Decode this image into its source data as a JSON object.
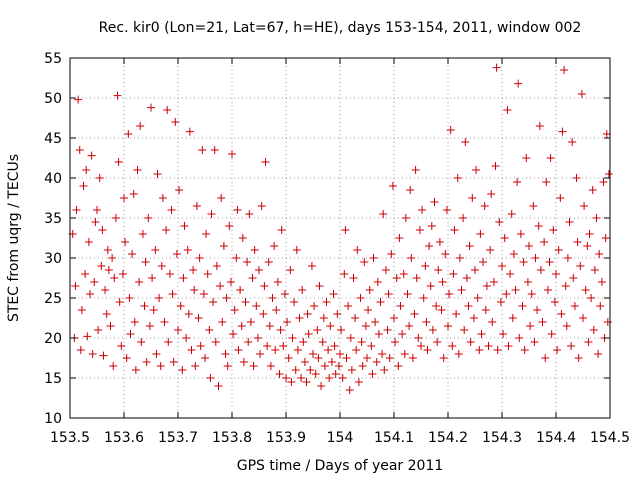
{
  "chart_data": {
    "type": "scatter",
    "title": "Rec. kir0 (Lon=21, Lat=67, h=HE), days 153-154, 2011, window 002",
    "xlabel": "GPS time / Days of year 2011",
    "ylabel": "STEC from uqrg / TECUs",
    "xlim": [
      153.5,
      154.5
    ],
    "ylim": [
      10,
      55
    ],
    "xticks": [
      153.5,
      153.6,
      153.7,
      153.8,
      153.9,
      154.0,
      154.1,
      154.2,
      154.3,
      154.4,
      154.5
    ],
    "xtick_labels": [
      "153.5",
      "153.6",
      "153.7",
      "153.8",
      "153.9",
      "154",
      "154.1",
      "154.2",
      "154.3",
      "154.4",
      "154.5"
    ],
    "yticks": [
      10,
      15,
      20,
      25,
      30,
      35,
      40,
      45,
      50,
      55
    ],
    "ytick_labels": [
      "10",
      "15",
      "20",
      "25",
      "30",
      "35",
      "40",
      "45",
      "50",
      "55"
    ],
    "grid": true,
    "marker": "plus",
    "color": "#cc0000",
    "points": [
      [
        153.505,
        33.0
      ],
      [
        153.508,
        20.0
      ],
      [
        153.51,
        26.5
      ],
      [
        153.512,
        36.0
      ],
      [
        153.515,
        49.8
      ],
      [
        153.518,
        43.5
      ],
      [
        153.52,
        18.5
      ],
      [
        153.522,
        23.5
      ],
      [
        153.525,
        39.0
      ],
      [
        153.528,
        28.0
      ],
      [
        153.53,
        41.0
      ],
      [
        153.532,
        20.2
      ],
      [
        153.535,
        32.0
      ],
      [
        153.537,
        25.5
      ],
      [
        153.54,
        42.8
      ],
      [
        153.542,
        18.0
      ],
      [
        153.545,
        27.0
      ],
      [
        153.547,
        34.5
      ],
      [
        153.55,
        36.0
      ],
      [
        153.552,
        21.0
      ],
      [
        153.555,
        40.0
      ],
      [
        153.558,
        29.0
      ],
      [
        153.56,
        33.5
      ],
      [
        153.562,
        17.8
      ],
      [
        153.565,
        26.0
      ],
      [
        153.568,
        23.0
      ],
      [
        153.57,
        31.0
      ],
      [
        153.572,
        28.5
      ],
      [
        153.575,
        21.5
      ],
      [
        153.578,
        30.0
      ],
      [
        153.58,
        16.5
      ],
      [
        153.582,
        27.5
      ],
      [
        153.585,
        35.0
      ],
      [
        153.588,
        50.3
      ],
      [
        153.59,
        42.0
      ],
      [
        153.592,
        24.5
      ],
      [
        153.595,
        19.0
      ],
      [
        153.598,
        28.0
      ],
      [
        153.6,
        37.5
      ],
      [
        153.602,
        32.0
      ],
      [
        153.605,
        17.5
      ],
      [
        153.608,
        45.5
      ],
      [
        153.61,
        25.0
      ],
      [
        153.612,
        20.5
      ],
      [
        153.615,
        30.5
      ],
      [
        153.618,
        38.0
      ],
      [
        153.62,
        22.0
      ],
      [
        153.622,
        16.0
      ],
      [
        153.625,
        41.0
      ],
      [
        153.628,
        27.0
      ],
      [
        153.63,
        46.5
      ],
      [
        153.632,
        19.5
      ],
      [
        153.635,
        33.0
      ],
      [
        153.638,
        24.0
      ],
      [
        153.64,
        29.5
      ],
      [
        153.642,
        17.0
      ],
      [
        153.645,
        35.0
      ],
      [
        153.648,
        21.5
      ],
      [
        153.65,
        48.8
      ],
      [
        153.652,
        27.5
      ],
      [
        153.655,
        23.5
      ],
      [
        153.658,
        31.0
      ],
      [
        153.66,
        18.0
      ],
      [
        153.662,
        40.5
      ],
      [
        153.665,
        25.0
      ],
      [
        153.668,
        16.5
      ],
      [
        153.67,
        29.0
      ],
      [
        153.672,
        37.5
      ],
      [
        153.675,
        22.0
      ],
      [
        153.678,
        33.5
      ],
      [
        153.68,
        48.5
      ],
      [
        153.682,
        19.5
      ],
      [
        153.685,
        28.0
      ],
      [
        153.688,
        36.0
      ],
      [
        153.69,
        25.5
      ],
      [
        153.692,
        17.0
      ],
      [
        153.695,
        47.0
      ],
      [
        153.698,
        30.5
      ],
      [
        153.7,
        21.0
      ],
      [
        153.702,
        38.5
      ],
      [
        153.705,
        24.0
      ],
      [
        153.708,
        16.0
      ],
      [
        153.71,
        27.5
      ],
      [
        153.712,
        34.0
      ],
      [
        153.715,
        20.0
      ],
      [
        153.718,
        31.0
      ],
      [
        153.72,
        23.0
      ],
      [
        153.722,
        45.8
      ],
      [
        153.725,
        18.5
      ],
      [
        153.728,
        28.5
      ],
      [
        153.73,
        26.0
      ],
      [
        153.732,
        16.5
      ],
      [
        153.735,
        36.5
      ],
      [
        153.738,
        22.5
      ],
      [
        153.74,
        30.0
      ],
      [
        153.742,
        19.0
      ],
      [
        153.745,
        43.5
      ],
      [
        153.748,
        25.5
      ],
      [
        153.75,
        17.5
      ],
      [
        153.752,
        33.0
      ],
      [
        153.755,
        28.0
      ],
      [
        153.758,
        21.0
      ],
      [
        153.76,
        15.0
      ],
      [
        153.762,
        35.5
      ],
      [
        153.765,
        24.5
      ],
      [
        153.768,
        43.5
      ],
      [
        153.77,
        19.5
      ],
      [
        153.772,
        29.0
      ],
      [
        153.775,
        14.0
      ],
      [
        153.778,
        26.5
      ],
      [
        153.78,
        37.5
      ],
      [
        153.782,
        22.0
      ],
      [
        153.785,
        31.5
      ],
      [
        153.788,
        18.0
      ],
      [
        153.79,
        25.0
      ],
      [
        153.792,
        16.5
      ],
      [
        153.795,
        34.0
      ],
      [
        153.798,
        27.0
      ],
      [
        153.8,
        43.0
      ],
      [
        153.802,
        20.5
      ],
      [
        153.805,
        23.5
      ],
      [
        153.808,
        30.0
      ],
      [
        153.81,
        36.0
      ],
      [
        153.812,
        18.5
      ],
      [
        153.815,
        26.0
      ],
      [
        153.818,
        21.5
      ],
      [
        153.82,
        32.5
      ],
      [
        153.822,
        17.0
      ],
      [
        153.825,
        24.5
      ],
      [
        153.828,
        29.5
      ],
      [
        153.83,
        19.5
      ],
      [
        153.832,
        35.5
      ],
      [
        153.835,
        22.0
      ],
      [
        153.838,
        27.5
      ],
      [
        153.84,
        16.5
      ],
      [
        153.842,
        31.0
      ],
      [
        153.845,
        24.0
      ],
      [
        153.848,
        20.0
      ],
      [
        153.85,
        28.5
      ],
      [
        153.852,
        18.0
      ],
      [
        153.855,
        36.5
      ],
      [
        153.858,
        23.0
      ],
      [
        153.86,
        26.5
      ],
      [
        153.862,
        42.0
      ],
      [
        153.865,
        19.0
      ],
      [
        153.868,
        29.5
      ],
      [
        153.87,
        21.5
      ],
      [
        153.872,
        16.5
      ],
      [
        153.875,
        25.0
      ],
      [
        153.878,
        31.5
      ],
      [
        153.88,
        18.5
      ],
      [
        153.882,
        23.5
      ],
      [
        153.885,
        27.0
      ],
      [
        153.888,
        15.5
      ],
      [
        153.89,
        21.0
      ],
      [
        153.892,
        33.5
      ],
      [
        153.895,
        19.0
      ],
      [
        153.898,
        25.5
      ],
      [
        153.9,
        15.0
      ],
      [
        153.902,
        22.0
      ],
      [
        153.905,
        17.5
      ],
      [
        153.908,
        28.5
      ],
      [
        153.91,
        14.5
      ],
      [
        153.912,
        20.0
      ],
      [
        153.915,
        24.5
      ],
      [
        153.918,
        16.0
      ],
      [
        153.92,
        31.0
      ],
      [
        153.922,
        18.5
      ],
      [
        153.925,
        22.5
      ],
      [
        153.928,
        15.0
      ],
      [
        153.93,
        26.0
      ],
      [
        153.932,
        19.5
      ],
      [
        153.935,
        17.0
      ],
      [
        153.938,
        14.5
      ],
      [
        153.94,
        23.0
      ],
      [
        153.942,
        20.5
      ],
      [
        153.945,
        16.0
      ],
      [
        153.948,
        29.0
      ],
      [
        153.95,
        18.0
      ],
      [
        153.952,
        24.0
      ],
      [
        153.955,
        15.5
      ],
      [
        153.958,
        21.0
      ],
      [
        153.96,
        17.5
      ],
      [
        153.962,
        26.5
      ],
      [
        153.965,
        14.0
      ],
      [
        153.968,
        19.5
      ],
      [
        153.97,
        22.5
      ],
      [
        153.972,
        16.5
      ],
      [
        153.975,
        24.5
      ],
      [
        153.978,
        18.5
      ],
      [
        153.98,
        15.0
      ],
      [
        153.982,
        21.5
      ],
      [
        153.985,
        17.0
      ],
      [
        153.988,
        25.5
      ],
      [
        153.99,
        19.0
      ],
      [
        153.992,
        15.5
      ],
      [
        153.995,
        23.0
      ],
      [
        153.998,
        16.5
      ],
      [
        154.0,
        18.0
      ],
      [
        154.002,
        21.0
      ],
      [
        154.005,
        15.0
      ],
      [
        154.008,
        28.0
      ],
      [
        154.01,
        33.5
      ],
      [
        154.012,
        17.5
      ],
      [
        154.015,
        24.0
      ],
      [
        154.018,
        13.5
      ],
      [
        154.02,
        20.0
      ],
      [
        154.022,
        16.0
      ],
      [
        154.025,
        27.5
      ],
      [
        154.028,
        22.5
      ],
      [
        154.03,
        18.5
      ],
      [
        154.032,
        31.0
      ],
      [
        154.035,
        14.5
      ],
      [
        154.038,
        25.0
      ],
      [
        154.04,
        19.5
      ],
      [
        154.042,
        16.5
      ],
      [
        154.045,
        29.5
      ],
      [
        154.048,
        21.5
      ],
      [
        154.05,
        17.5
      ],
      [
        154.052,
        23.5
      ],
      [
        154.055,
        26.0
      ],
      [
        154.058,
        19.0
      ],
      [
        154.06,
        15.5
      ],
      [
        154.062,
        30.0
      ],
      [
        154.065,
        22.0
      ],
      [
        154.068,
        17.0
      ],
      [
        154.07,
        27.0
      ],
      [
        154.072,
        20.5
      ],
      [
        154.075,
        24.5
      ],
      [
        154.078,
        18.0
      ],
      [
        154.08,
        35.5
      ],
      [
        154.082,
        16.0
      ],
      [
        154.085,
        28.5
      ],
      [
        154.088,
        21.0
      ],
      [
        154.09,
        25.5
      ],
      [
        154.092,
        17.5
      ],
      [
        154.095,
        30.5
      ],
      [
        154.098,
        39.0
      ],
      [
        154.1,
        22.5
      ],
      [
        154.102,
        19.5
      ],
      [
        154.105,
        27.5
      ],
      [
        154.108,
        16.5
      ],
      [
        154.11,
        32.5
      ],
      [
        154.112,
        24.0
      ],
      [
        154.115,
        20.5
      ],
      [
        154.118,
        28.0
      ],
      [
        154.12,
        18.0
      ],
      [
        154.122,
        35.0
      ],
      [
        154.125,
        25.5
      ],
      [
        154.128,
        21.5
      ],
      [
        154.13,
        38.5
      ],
      [
        154.132,
        30.0
      ],
      [
        154.135,
        17.5
      ],
      [
        154.138,
        23.0
      ],
      [
        154.14,
        41.0
      ],
      [
        154.142,
        27.5
      ],
      [
        154.145,
        20.0
      ],
      [
        154.148,
        33.5
      ],
      [
        154.15,
        19.0
      ],
      [
        154.152,
        36.0
      ],
      [
        154.155,
        25.0
      ],
      [
        154.158,
        29.0
      ],
      [
        154.16,
        22.0
      ],
      [
        154.162,
        18.5
      ],
      [
        154.165,
        31.5
      ],
      [
        154.168,
        26.5
      ],
      [
        154.17,
        34.0
      ],
      [
        154.172,
        21.0
      ],
      [
        154.175,
        37.0
      ],
      [
        154.178,
        24.0
      ],
      [
        154.18,
        19.5
      ],
      [
        154.182,
        28.5
      ],
      [
        154.185,
        32.0
      ],
      [
        154.188,
        23.5
      ],
      [
        154.19,
        27.0
      ],
      [
        154.192,
        17.5
      ],
      [
        154.195,
        30.5
      ],
      [
        154.198,
        36.0
      ],
      [
        154.2,
        21.5
      ],
      [
        154.202,
        25.5
      ],
      [
        154.205,
        46.0
      ],
      [
        154.208,
        19.0
      ],
      [
        154.21,
        28.0
      ],
      [
        154.212,
        33.5
      ],
      [
        154.215,
        23.0
      ],
      [
        154.218,
        40.0
      ],
      [
        154.22,
        18.0
      ],
      [
        154.222,
        30.0
      ],
      [
        154.225,
        26.0
      ],
      [
        154.228,
        35.0
      ],
      [
        154.23,
        21.0
      ],
      [
        154.232,
        44.5
      ],
      [
        154.235,
        27.5
      ],
      [
        154.238,
        24.0
      ],
      [
        154.24,
        31.5
      ],
      [
        154.242,
        19.5
      ],
      [
        154.245,
        37.5
      ],
      [
        154.248,
        22.5
      ],
      [
        154.25,
        28.5
      ],
      [
        154.252,
        41.0
      ],
      [
        154.255,
        25.0
      ],
      [
        154.258,
        18.5
      ],
      [
        154.26,
        33.0
      ],
      [
        154.262,
        20.5
      ],
      [
        154.265,
        29.5
      ],
      [
        154.268,
        36.5
      ],
      [
        154.27,
        23.5
      ],
      [
        154.272,
        26.5
      ],
      [
        154.275,
        19.0
      ],
      [
        154.278,
        31.0
      ],
      [
        154.28,
        38.0
      ],
      [
        154.282,
        22.0
      ],
      [
        154.285,
        27.0
      ],
      [
        154.288,
        41.5
      ],
      [
        154.29,
        53.8
      ],
      [
        154.292,
        18.5
      ],
      [
        154.295,
        34.5
      ],
      [
        154.298,
        24.5
      ],
      [
        154.3,
        29.0
      ],
      [
        154.302,
        20.5
      ],
      [
        154.305,
        32.5
      ],
      [
        154.308,
        25.5
      ],
      [
        154.31,
        48.5
      ],
      [
        154.312,
        19.0
      ],
      [
        154.315,
        28.0
      ],
      [
        154.318,
        35.5
      ],
      [
        154.32,
        22.5
      ],
      [
        154.322,
        30.5
      ],
      [
        154.325,
        26.0
      ],
      [
        154.328,
        39.5
      ],
      [
        154.33,
        51.8
      ],
      [
        154.332,
        20.0
      ],
      [
        154.335,
        33.0
      ],
      [
        154.338,
        24.0
      ],
      [
        154.34,
        29.5
      ],
      [
        154.342,
        18.5
      ],
      [
        154.345,
        42.5
      ],
      [
        154.348,
        27.0
      ],
      [
        154.35,
        31.5
      ],
      [
        154.352,
        21.5
      ],
      [
        154.355,
        25.5
      ],
      [
        154.358,
        36.5
      ],
      [
        154.36,
        19.5
      ],
      [
        154.362,
        30.0
      ],
      [
        154.365,
        23.5
      ],
      [
        154.368,
        34.0
      ],
      [
        154.37,
        46.5
      ],
      [
        154.372,
        28.5
      ],
      [
        154.375,
        22.0
      ],
      [
        154.378,
        32.0
      ],
      [
        154.38,
        17.5
      ],
      [
        154.382,
        39.5
      ],
      [
        154.385,
        26.0
      ],
      [
        154.388,
        29.5
      ],
      [
        154.39,
        42.5
      ],
      [
        154.392,
        20.5
      ],
      [
        154.395,
        33.5
      ],
      [
        154.398,
        24.5
      ],
      [
        154.4,
        28.0
      ],
      [
        154.402,
        18.5
      ],
      [
        154.405,
        31.0
      ],
      [
        154.408,
        37.5
      ],
      [
        154.41,
        23.0
      ],
      [
        154.412,
        45.8
      ],
      [
        154.415,
        53.5
      ],
      [
        154.418,
        26.5
      ],
      [
        154.42,
        21.5
      ],
      [
        154.422,
        30.0
      ],
      [
        154.425,
        34.5
      ],
      [
        154.428,
        19.0
      ],
      [
        154.43,
        44.5
      ],
      [
        154.432,
        27.5
      ],
      [
        154.435,
        24.0
      ],
      [
        154.438,
        40.0
      ],
      [
        154.44,
        32.0
      ],
      [
        154.442,
        17.5
      ],
      [
        154.445,
        29.0
      ],
      [
        154.448,
        50.5
      ],
      [
        154.45,
        22.5
      ],
      [
        154.452,
        36.5
      ],
      [
        154.455,
        26.0
      ],
      [
        154.458,
        31.5
      ],
      [
        154.46,
        19.5
      ],
      [
        154.462,
        33.0
      ],
      [
        154.465,
        25.0
      ],
      [
        154.468,
        38.5
      ],
      [
        154.47,
        21.0
      ],
      [
        154.472,
        28.5
      ],
      [
        154.475,
        35.0
      ],
      [
        154.478,
        18.0
      ],
      [
        154.48,
        30.5
      ],
      [
        154.482,
        24.0
      ],
      [
        154.485,
        27.0
      ],
      [
        154.488,
        39.5
      ],
      [
        154.49,
        20.0
      ],
      [
        154.492,
        32.5
      ],
      [
        154.494,
        45.5
      ],
      [
        154.496,
        22.0
      ],
      [
        154.498,
        40.5
      ]
    ]
  }
}
